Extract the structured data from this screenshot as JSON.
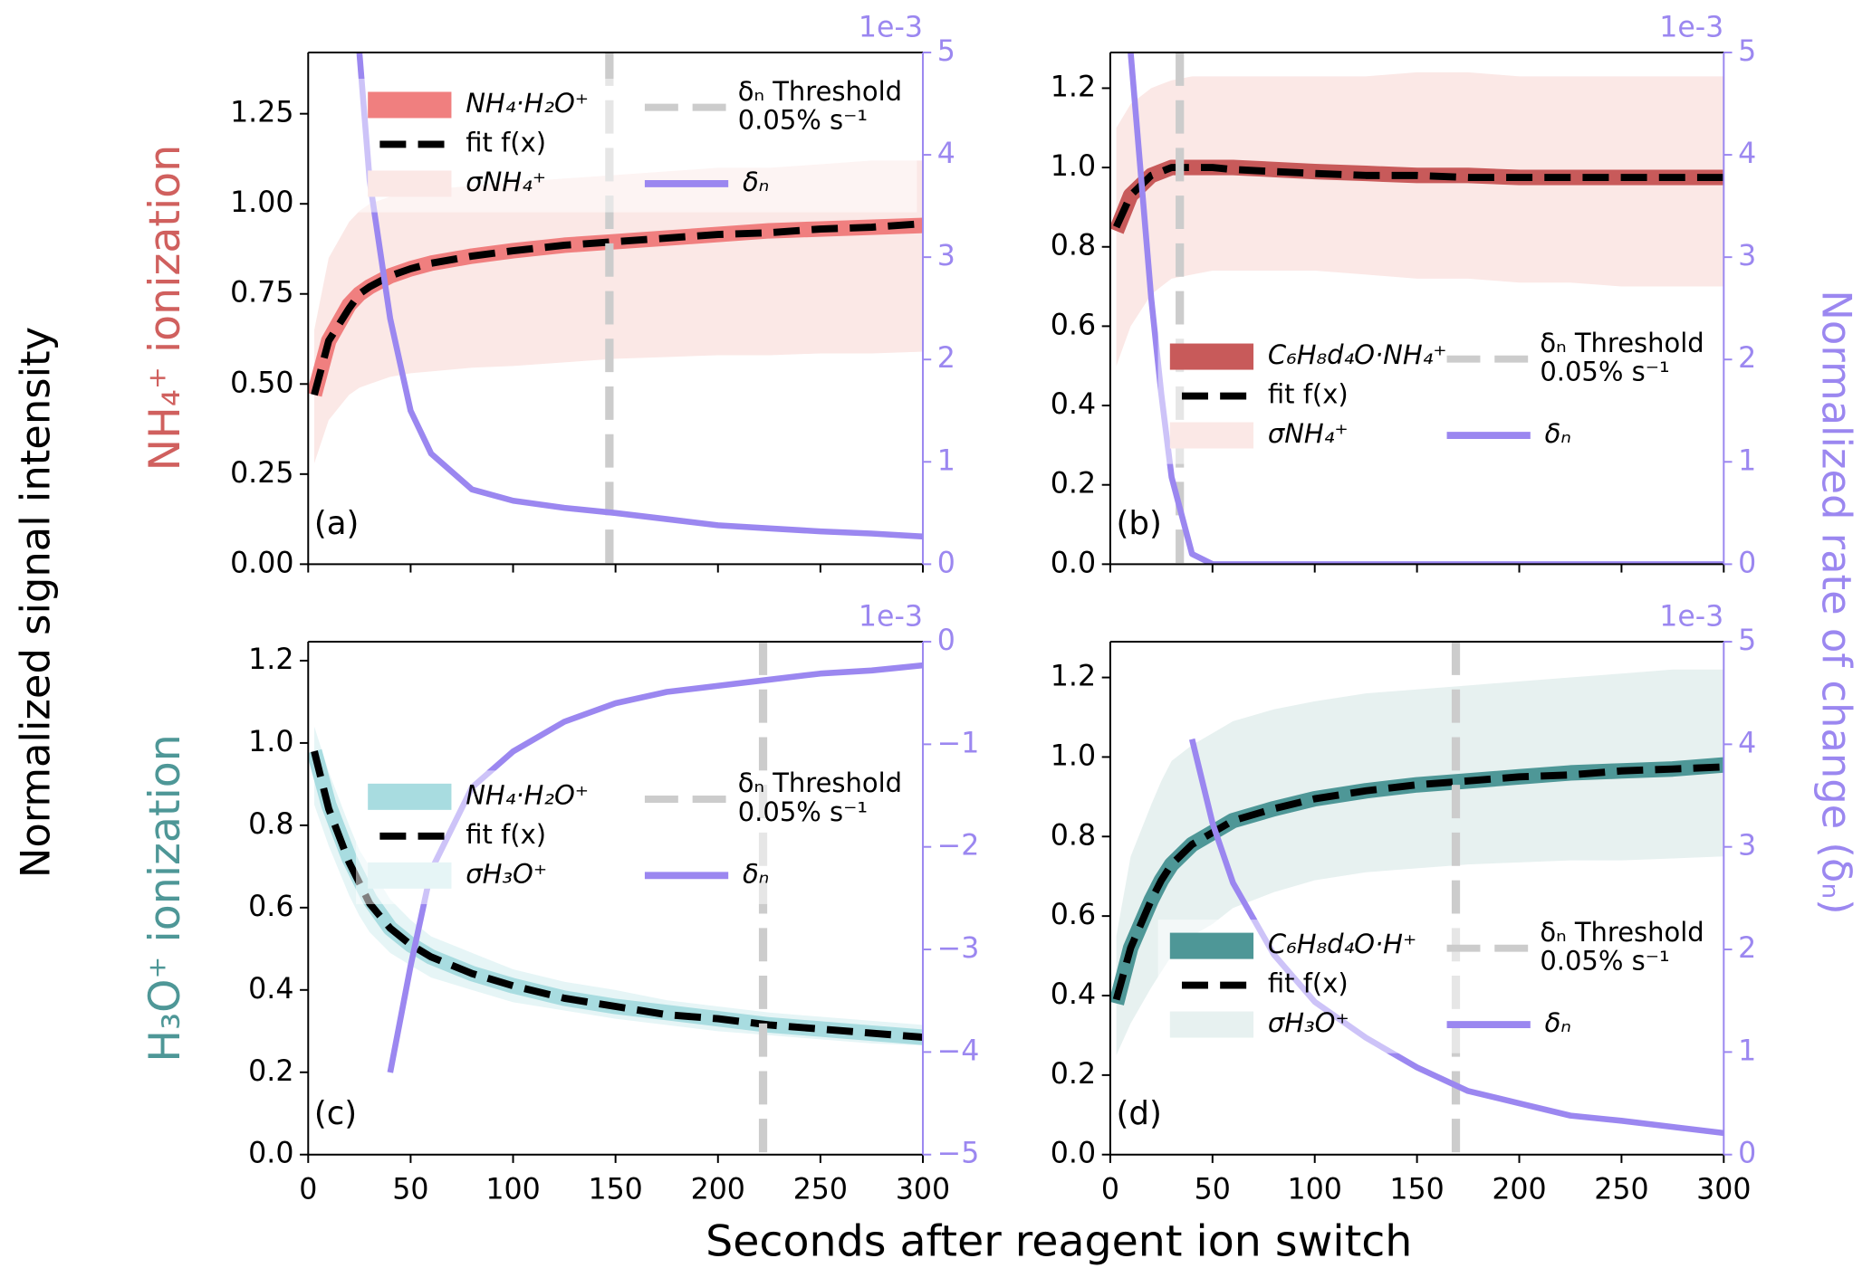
{
  "figure": {
    "xlabel": "Seconds after reagent ion switch",
    "ylabel": "Normalized signal intensity",
    "y2label": "Normalized rate of change (δₙ)",
    "rows": [
      {
        "label": "NH₄⁺ ionization",
        "color": "#d0605e"
      },
      {
        "label": "H₃O⁺ ionization",
        "color": "#4e9797"
      }
    ]
  },
  "chart_data": [
    {
      "type": "line",
      "panel_label": "(a)",
      "legend": "upper center",
      "show_xtick_labels": false,
      "y2_offset_label": "1e-3",
      "x": [
        3,
        10,
        20,
        25,
        30,
        40,
        50,
        60,
        80,
        100,
        125,
        150,
        175,
        200,
        225,
        250,
        275,
        300
      ],
      "xlim": [
        0,
        300
      ],
      "xticks": [
        0,
        50,
        100,
        150,
        200,
        250,
        300
      ],
      "ylim": [
        0,
        1.42
      ],
      "yticks": [
        {
          "value": 0,
          "label": "0.00"
        },
        0.25,
        {
          "value": 0.5,
          "label": "0.50"
        },
        0.75,
        {
          "value": 1,
          "label": "1.00"
        },
        1.25
      ],
      "y2lim": [
        0,
        5
      ],
      "y2ticks": [
        0,
        1,
        2,
        3,
        4,
        5
      ],
      "series": [
        {
          "name": "NH₄·H₂O⁺",
          "color": "#f07f7f",
          "values": [
            0.47,
            0.62,
            0.72,
            0.75,
            0.77,
            0.8,
            0.82,
            0.835,
            0.855,
            0.87,
            0.885,
            0.895,
            0.905,
            0.915,
            0.925,
            0.93,
            0.935,
            0.94
          ]
        },
        {
          "name": "fit f(x)",
          "color": "#000000",
          "linestyle": "dashed",
          "values": [
            0.47,
            0.62,
            0.71,
            0.75,
            0.77,
            0.8,
            0.82,
            0.835,
            0.855,
            0.87,
            0.885,
            0.895,
            0.905,
            0.915,
            0.92,
            0.93,
            0.935,
            0.945
          ]
        },
        {
          "name": "σNH₄⁺",
          "color": "#fbe8e6",
          "lower": [
            0.28,
            0.4,
            0.47,
            0.49,
            0.5,
            0.52,
            0.53,
            0.535,
            0.545,
            0.55,
            0.56,
            0.57,
            0.575,
            0.58,
            0.58,
            0.585,
            0.585,
            0.59
          ],
          "upper": [
            0.65,
            0.85,
            0.95,
            0.98,
            1.0,
            1.02,
            1.03,
            1.04,
            1.05,
            1.06,
            1.07,
            1.08,
            1.09,
            1.1,
            1.1,
            1.11,
            1.12,
            1.12
          ]
        },
        {
          "name": "δₙ",
          "color": "#9b87f0",
          "axis": "y2",
          "values": [
            null,
            null,
            null,
            5,
            3.75,
            2.4,
            1.5,
            1.08,
            0.73,
            0.62,
            0.55,
            0.5,
            0.44,
            0.38,
            0.35,
            0.32,
            0.3,
            0.27
          ]
        }
      ],
      "threshold": {
        "name": [
          "δₙ Threshold",
          "0.05% s⁻¹"
        ],
        "x": 147,
        "color": "#cccccc"
      }
    },
    {
      "type": "line",
      "panel_label": "(b)",
      "legend": "lower center",
      "show_xtick_labels": false,
      "y2_offset_label": "1e-3",
      "x": [
        3,
        10,
        20,
        25,
        30,
        40,
        50,
        60,
        80,
        100,
        125,
        150,
        175,
        200,
        225,
        250,
        275,
        300
      ],
      "xlim": [
        0,
        300
      ],
      "xticks": [
        0,
        50,
        100,
        150,
        200,
        250,
        300
      ],
      "ylim": [
        0,
        1.29
      ],
      "yticks": [
        {
          "value": 0,
          "label": "0.0"
        },
        0.2,
        0.4,
        0.6,
        0.8,
        {
          "value": 1,
          "label": "1.0"
        },
        1.2
      ],
      "y2lim": [
        0,
        5
      ],
      "y2ticks": [
        0,
        1,
        2,
        3,
        4,
        5
      ],
      "series": [
        {
          "name": "C₆H₈d₄O·NH₄⁺",
          "color": "#c85a5a",
          "values": [
            0.84,
            0.93,
            0.98,
            0.99,
            1.0,
            1.0,
            1.0,
            1.0,
            0.995,
            0.99,
            0.985,
            0.98,
            0.98,
            0.975,
            0.975,
            0.975,
            0.975,
            0.975
          ]
        },
        {
          "name": "fit f(x)",
          "color": "#000000",
          "linestyle": "dashed",
          "values": [
            0.85,
            0.93,
            0.98,
            0.99,
            1.0,
            1.0,
            1.0,
            0.995,
            0.99,
            0.985,
            0.98,
            0.98,
            0.975,
            0.975,
            0.975,
            0.975,
            0.975,
            0.975
          ]
        },
        {
          "name": "σNH₄⁺",
          "color": "#fbe8e6",
          "lower": [
            0.5,
            0.6,
            0.68,
            0.7,
            0.72,
            0.73,
            0.74,
            0.74,
            0.74,
            0.74,
            0.73,
            0.72,
            0.72,
            0.71,
            0.71,
            0.7,
            0.7,
            0.7
          ],
          "upper": [
            1.1,
            1.16,
            1.2,
            1.21,
            1.22,
            1.23,
            1.23,
            1.23,
            1.23,
            1.23,
            1.23,
            1.24,
            1.24,
            1.23,
            1.23,
            1.23,
            1.23,
            1.23
          ]
        },
        {
          "name": "δₙ",
          "color": "#9b87f0",
          "axis": "y2",
          "values": [
            null,
            5,
            2.6,
            1.66,
            0.85,
            0.1,
            0,
            0,
            0,
            0,
            0,
            0,
            0,
            0,
            0,
            0,
            0,
            0
          ]
        }
      ],
      "threshold": {
        "name": [
          "δₙ Threshold",
          "0.05% s⁻¹"
        ],
        "x": 34,
        "color": "#cccccc"
      }
    },
    {
      "type": "line",
      "panel_label": "(c)",
      "legend": "center",
      "show_xtick_labels": true,
      "y2_offset_label": "1e-3",
      "x": [
        3,
        10,
        20,
        25,
        30,
        40,
        50,
        60,
        80,
        100,
        125,
        150,
        175,
        200,
        225,
        250,
        275,
        300
      ],
      "xlim": [
        0,
        300
      ],
      "xticks": [
        0,
        50,
        100,
        150,
        200,
        250,
        300
      ],
      "ylim": [
        0,
        1.246
      ],
      "yticks": [
        {
          "value": 0,
          "label": "0.0"
        },
        0.2,
        0.4,
        0.6,
        0.8,
        {
          "value": 1,
          "label": "1.0"
        },
        1.2
      ],
      "y2lim": [
        -5,
        0
      ],
      "y2ticks": [
        {
          "value": -5,
          "label": "−5"
        },
        {
          "value": -4,
          "label": "−4"
        },
        {
          "value": -3,
          "label": "−3"
        },
        {
          "value": -2,
          "label": "−2"
        },
        {
          "value": -1,
          "label": "−1"
        },
        0
      ],
      "series": [
        {
          "name": "NH₄·H₂O⁺",
          "color": "#a8dce0",
          "values": [
            0.98,
            0.85,
            0.72,
            0.67,
            0.62,
            0.55,
            0.51,
            0.48,
            0.44,
            0.41,
            0.38,
            0.36,
            0.345,
            0.33,
            0.315,
            0.305,
            0.295,
            0.285
          ]
        },
        {
          "name": "fit f(x)",
          "color": "#000000",
          "linestyle": "dashed",
          "values": [
            0.98,
            0.84,
            0.71,
            0.66,
            0.61,
            0.55,
            0.51,
            0.48,
            0.44,
            0.41,
            0.38,
            0.36,
            0.34,
            0.33,
            0.315,
            0.305,
            0.295,
            0.285
          ]
        },
        {
          "name": "σH₃O⁺",
          "color": "#e6f5f6",
          "lower": [
            0.85,
            0.75,
            0.63,
            0.58,
            0.54,
            0.49,
            0.46,
            0.43,
            0.4,
            0.37,
            0.35,
            0.33,
            0.315,
            0.3,
            0.29,
            0.28,
            0.27,
            0.265
          ],
          "upper": [
            1.04,
            0.93,
            0.8,
            0.74,
            0.7,
            0.62,
            0.57,
            0.53,
            0.49,
            0.45,
            0.42,
            0.4,
            0.375,
            0.36,
            0.345,
            0.335,
            0.325,
            0.315
          ]
        },
        {
          "name": "δₙ",
          "color": "#9b87f0",
          "axis": "y2",
          "values": [
            null,
            null,
            null,
            null,
            null,
            -4.2,
            -3.16,
            -2.23,
            -1.42,
            -1.07,
            -0.78,
            -0.6,
            -0.49,
            -0.43,
            -0.37,
            -0.31,
            -0.28,
            -0.23
          ]
        }
      ],
      "threshold": {
        "name": [
          "δₙ Threshold",
          "0.05% s⁻¹"
        ],
        "x": 222,
        "color": "#cccccc"
      }
    },
    {
      "type": "line",
      "panel_label": "(d)",
      "legend": "lower center",
      "show_xtick_labels": true,
      "y2_offset_label": "1e-3",
      "x": [
        3,
        10,
        20,
        25,
        30,
        40,
        50,
        60,
        80,
        100,
        125,
        150,
        175,
        200,
        225,
        250,
        275,
        300
      ],
      "xlim": [
        0,
        300
      ],
      "xticks": [
        0,
        50,
        100,
        150,
        200,
        250,
        300
      ],
      "ylim": [
        0,
        1.29
      ],
      "yticks": [
        {
          "value": 0,
          "label": "0.0"
        },
        0.2,
        0.4,
        0.6,
        0.8,
        {
          "value": 1,
          "label": "1.0"
        },
        1.2
      ],
      "y2lim": [
        0,
        5
      ],
      "y2ticks": [
        0,
        1,
        2,
        3,
        4,
        5
      ],
      "series": [
        {
          "name": "C₆H₈d₄O·H⁺",
          "color": "#4e9797",
          "values": [
            0.38,
            0.52,
            0.64,
            0.69,
            0.73,
            0.78,
            0.81,
            0.84,
            0.87,
            0.895,
            0.915,
            0.93,
            0.94,
            0.95,
            0.96,
            0.965,
            0.97,
            0.98
          ]
        },
        {
          "name": "fit f(x)",
          "color": "#000000",
          "linestyle": "dashed",
          "values": [
            0.39,
            0.52,
            0.64,
            0.69,
            0.73,
            0.78,
            0.81,
            0.84,
            0.87,
            0.895,
            0.915,
            0.93,
            0.94,
            0.95,
            0.955,
            0.965,
            0.97,
            0.975
          ]
        },
        {
          "name": "σH₃O⁺",
          "color": "#e7f1f0",
          "lower": [
            0.25,
            0.33,
            0.42,
            0.46,
            0.5,
            0.55,
            0.58,
            0.62,
            0.66,
            0.69,
            0.71,
            0.72,
            0.73,
            0.735,
            0.74,
            0.74,
            0.745,
            0.75
          ],
          "upper": [
            0.55,
            0.75,
            0.88,
            0.94,
            0.99,
            1.03,
            1.06,
            1.09,
            1.12,
            1.14,
            1.16,
            1.17,
            1.18,
            1.19,
            1.2,
            1.21,
            1.22,
            1.22
          ]
        },
        {
          "name": "δₙ",
          "color": "#9b87f0",
          "axis": "y2",
          "values": [
            null,
            null,
            null,
            null,
            null,
            4.05,
            3.23,
            2.65,
            1.95,
            1.49,
            1.14,
            0.85,
            0.62,
            0.5,
            0.38,
            0.33,
            0.27,
            0.21
          ]
        }
      ],
      "threshold": {
        "name": [
          "δₙ Threshold",
          "0.05% s⁻¹"
        ],
        "x": 169,
        "color": "#cccccc"
      }
    }
  ]
}
